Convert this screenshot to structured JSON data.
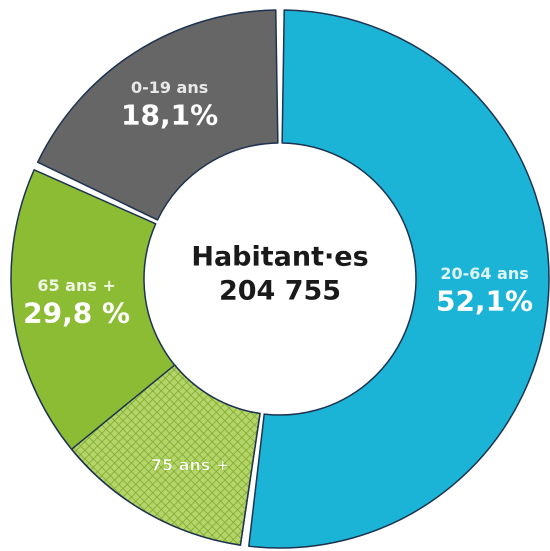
{
  "chart_data": {
    "type": "donut",
    "center_label": [
      "Habitant·es",
      "204 755"
    ],
    "categories": [
      "20-64 ans",
      "65 ans +",
      "0-19 ans"
    ],
    "values": [
      52.1,
      29.8,
      18.1
    ],
    "value_labels": [
      "52,1%",
      "29,8 %",
      "18,1%"
    ],
    "colors": [
      "#1cb4d6",
      "#8cbb34",
      "#666666"
    ],
    "highlight": {
      "label": "75 ans +",
      "value": 12,
      "within": 1
    }
  }
}
